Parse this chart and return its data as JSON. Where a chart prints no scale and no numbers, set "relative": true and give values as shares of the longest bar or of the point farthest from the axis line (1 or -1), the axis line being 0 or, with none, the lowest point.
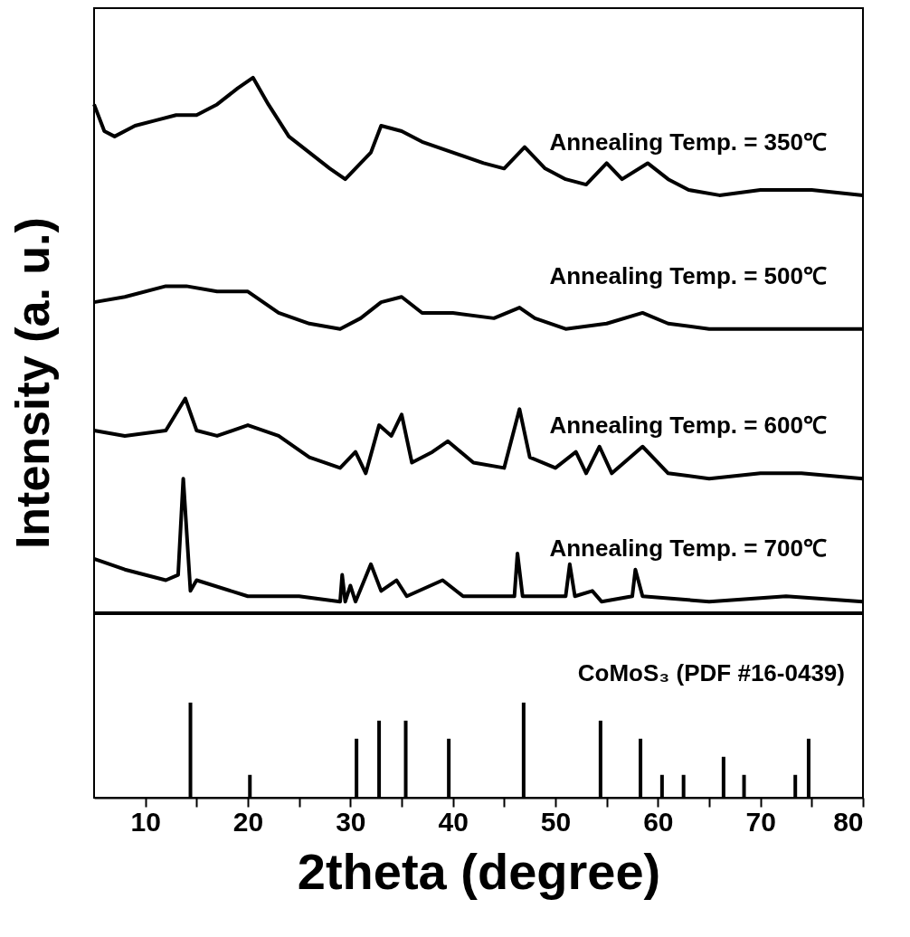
{
  "chart_data": [
    {
      "type": "line",
      "relative": true,
      "ylabel": "Intensity (a. u.)",
      "xlim": [
        5,
        80
      ],
      "tick_labels": false,
      "grid": false,
      "marker": "none",
      "line_style": "solid",
      "series": [
        {
          "name": "Annealing Temp. = 350℃",
          "color": "#000000",
          "x": [
            5,
            6,
            7,
            9,
            11,
            13,
            15,
            17,
            19,
            20.5,
            22,
            24,
            26,
            28,
            29.5,
            31,
            32,
            33,
            35,
            37,
            40,
            43,
            45,
            47,
            49,
            51,
            53,
            55,
            56.5,
            59,
            61,
            63,
            66,
            70,
            75,
            80
          ],
          "values": [
            0.95,
            0.9,
            0.89,
            0.91,
            0.92,
            0.93,
            0.93,
            0.95,
            0.98,
            1.0,
            0.95,
            0.89,
            0.86,
            0.83,
            0.81,
            0.84,
            0.86,
            0.91,
            0.9,
            0.88,
            0.86,
            0.84,
            0.83,
            0.87,
            0.83,
            0.81,
            0.8,
            0.84,
            0.81,
            0.84,
            0.81,
            0.79,
            0.78,
            0.79,
            0.79,
            0.78
          ]
        },
        {
          "name": "Annealing Temp. = 500℃",
          "color": "#000000",
          "x": [
            5,
            8,
            12,
            14,
            17,
            20,
            23,
            26,
            29,
            31,
            33,
            35,
            37,
            40,
            44,
            46.5,
            48,
            51,
            55,
            58.5,
            61,
            65,
            70,
            75,
            80
          ],
          "values": [
            0.58,
            0.59,
            0.61,
            0.61,
            0.6,
            0.6,
            0.56,
            0.54,
            0.53,
            0.55,
            0.58,
            0.59,
            0.56,
            0.56,
            0.55,
            0.57,
            0.55,
            0.53,
            0.54,
            0.56,
            0.54,
            0.53,
            0.53,
            0.53,
            0.53
          ]
        },
        {
          "name": "Annealing Temp. = 600℃",
          "color": "#000000",
          "x": [
            5,
            8,
            12,
            13.9,
            15,
            17,
            20,
            23,
            26,
            29,
            30.5,
            31.5,
            32.8,
            34,
            35,
            36,
            38,
            39.5,
            42,
            45,
            46.5,
            47.5,
            50,
            52,
            53,
            54.3,
            55.5,
            58.5,
            61,
            65,
            70,
            74,
            80
          ],
          "values": [
            0.34,
            0.33,
            0.34,
            0.4,
            0.34,
            0.33,
            0.35,
            0.33,
            0.29,
            0.27,
            0.3,
            0.26,
            0.35,
            0.33,
            0.37,
            0.28,
            0.3,
            0.32,
            0.28,
            0.27,
            0.38,
            0.29,
            0.27,
            0.3,
            0.26,
            0.31,
            0.26,
            0.31,
            0.26,
            0.25,
            0.26,
            0.26,
            0.25
          ]
        },
        {
          "name": "Annealing Temp. = 700℃",
          "color": "#000000",
          "x": [
            5,
            8,
            12,
            13.2,
            13.7,
            14.4,
            15,
            20,
            25,
            29,
            29.2,
            29.5,
            30,
            30.5,
            32,
            33,
            34.5,
            35.5,
            39,
            41,
            46,
            46.3,
            46.8,
            51,
            51.4,
            51.9,
            53.6,
            54.5,
            57.5,
            57.8,
            58.5,
            65,
            72.5,
            80
          ],
          "values": [
            0.1,
            0.08,
            0.06,
            0.07,
            0.25,
            0.04,
            0.06,
            0.03,
            0.03,
            0.02,
            0.07,
            0.02,
            0.05,
            0.02,
            0.09,
            0.04,
            0.06,
            0.03,
            0.06,
            0.03,
            0.03,
            0.11,
            0.03,
            0.03,
            0.09,
            0.03,
            0.04,
            0.02,
            0.03,
            0.08,
            0.03,
            0.02,
            0.03,
            0.02
          ]
        }
      ]
    },
    {
      "type": "bar",
      "relative": true,
      "xlabel": "2theta (degree)",
      "xlim": [
        5,
        80
      ],
      "tick_labels": "x",
      "grid": false,
      "xticks": [
        10,
        {
          "value": 15,
          "label": null
        },
        20,
        {
          "value": 25,
          "label": null
        },
        30,
        {
          "value": 35,
          "label": null
        },
        40,
        {
          "value": 45,
          "label": null
        },
        50,
        {
          "value": 55,
          "label": null
        },
        60,
        {
          "value": 65,
          "label": null
        },
        70,
        {
          "value": 75,
          "label": null
        },
        80
      ],
      "series": [
        {
          "name": "CoMoS₃ (PDF #16-0439)",
          "color": "#000000",
          "x": [
            14.4,
            20.2,
            30.6,
            32.8,
            35.4,
            39.6,
            46.9,
            54.4,
            58.3,
            60.4,
            62.5,
            66.4,
            68.4,
            73.4,
            74.7
          ],
          "values": [
            1,
            0.24,
            0.62,
            0.81,
            0.81,
            0.62,
            1,
            0.81,
            0.62,
            0.24,
            0.24,
            0.43,
            0.24,
            0.24,
            0.62
          ]
        }
      ]
    }
  ]
}
